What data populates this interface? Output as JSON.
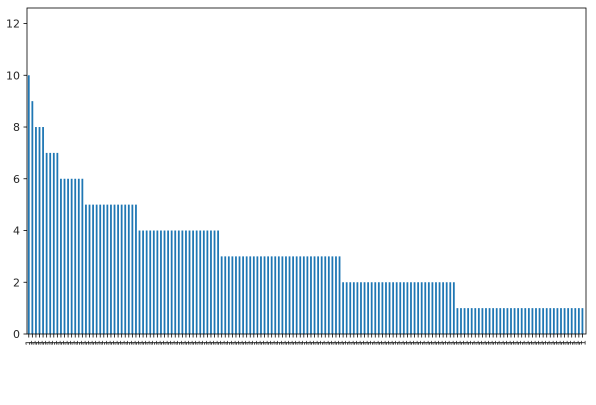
{
  "chart_data": {
    "type": "bar",
    "title": "",
    "xlabel": "",
    "ylabel": "",
    "ylim": [
      0,
      12.6
    ],
    "yticks": [
      0,
      2,
      4,
      6,
      8,
      10,
      12
    ],
    "grid": false,
    "legend": "none",
    "bar_color": "#1f77b4",
    "categories": [
      "1",
      "1",
      "1",
      "1",
      "1",
      "1",
      "1",
      "1",
      "1",
      "1",
      "1",
      "1",
      "1",
      "1",
      "1",
      "1",
      "1",
      "1",
      "1",
      "1",
      "1",
      "1",
      "1",
      "1",
      "1",
      "1",
      "1",
      "1",
      "1",
      "1",
      "1",
      "1",
      "1",
      "1",
      "1",
      "1",
      "1",
      "1",
      "1",
      "1",
      "1",
      "1",
      "1",
      "1",
      "1",
      "1",
      "1",
      "1",
      "1",
      "1",
      "1",
      "1",
      "1",
      "1",
      "1",
      "1",
      "1",
      "1",
      "1",
      "1",
      "1",
      "1",
      "1",
      "1",
      "1",
      "1",
      "1",
      "1",
      "1",
      "1",
      "1",
      "1",
      "1",
      "1",
      "1",
      "1",
      "1",
      "1",
      "1",
      "1",
      "1",
      "1",
      "1",
      "1",
      "1",
      "1",
      "1",
      "1",
      "1",
      "1",
      "1",
      "1",
      "1",
      "1",
      "1",
      "1",
      "1",
      "1",
      "1",
      "1",
      "1",
      "1",
      "1",
      "1",
      "1",
      "1",
      "1",
      "1",
      "1",
      "1",
      "1",
      "1",
      "1",
      "1",
      "1",
      "1",
      "1",
      "1",
      "1",
      "1",
      "1",
      "1",
      "1",
      "1",
      "1",
      "1",
      "1",
      "1",
      "1",
      "1",
      "1",
      "1",
      "1",
      "1",
      "1",
      "1",
      "1",
      "1",
      "1",
      "1",
      "1",
      "1",
      "1",
      "1",
      "1",
      "1",
      "1",
      "1",
      "1",
      "1",
      "1",
      "1",
      "1",
      "1",
      "1",
      "1"
    ],
    "values": [
      10,
      9,
      8,
      8,
      8,
      7,
      7,
      7,
      7,
      6,
      6,
      6,
      6,
      6,
      6,
      6,
      5,
      5,
      5,
      5,
      5,
      5,
      5,
      5,
      5,
      5,
      5,
      5,
      5,
      5,
      5,
      4,
      4,
      4,
      4,
      4,
      4,
      4,
      4,
      4,
      4,
      4,
      4,
      4,
      4,
      4,
      4,
      4,
      4,
      4,
      4,
      4,
      4,
      4,
      3,
      3,
      3,
      3,
      3,
      3,
      3,
      3,
      3,
      3,
      3,
      3,
      3,
      3,
      3,
      3,
      3,
      3,
      3,
      3,
      3,
      3,
      3,
      3,
      3,
      3,
      3,
      3,
      3,
      3,
      3,
      3,
      3,
      3,
      2,
      2,
      2,
      2,
      2,
      2,
      2,
      2,
      2,
      2,
      2,
      2,
      2,
      2,
      2,
      2,
      2,
      2,
      2,
      2,
      2,
      2,
      2,
      2,
      2,
      2,
      2,
      2,
      2,
      2,
      2,
      2,
      1,
      1,
      1,
      1,
      1,
      1,
      1,
      1,
      1,
      1,
      1,
      1,
      1,
      1,
      1,
      1,
      1,
      1,
      1,
      1,
      1,
      1,
      1,
      1,
      1,
      1,
      1,
      1,
      1,
      1,
      1,
      1,
      1,
      1,
      1,
      1
    ]
  }
}
